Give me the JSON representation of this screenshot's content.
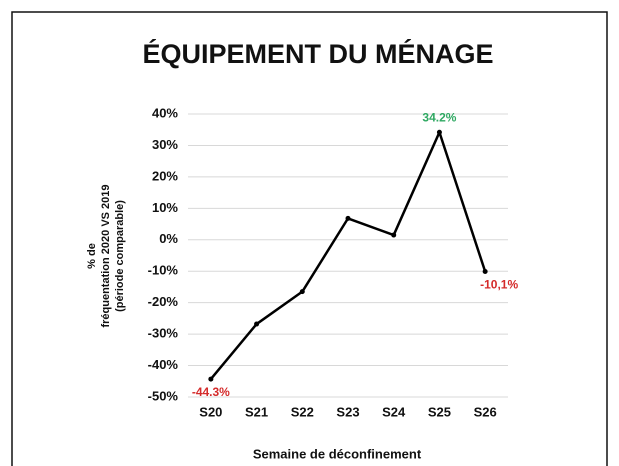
{
  "chart_data": {
    "type": "line",
    "title": "ÉQUIPEMENT DU MÉNAGE",
    "ylabel": [
      "% de",
      "fréquentation 2020 VS 2019",
      "(période comparable)"
    ],
    "xlabel": "Semaine de déconfinement",
    "categories": [
      "S20",
      "S21",
      "S22",
      "S23",
      "S24",
      "S25",
      "S26"
    ],
    "values": [
      -44.3,
      -26.8,
      -16.5,
      6.8,
      1.5,
      34.2,
      -10.1
    ],
    "value_labels": [
      "-44.3%",
      null,
      null,
      null,
      null,
      "34.2%",
      "-10,1%"
    ],
    "value_label_colors": [
      "#d42a2a",
      null,
      null,
      null,
      null,
      "#2fa862",
      "#d42a2a"
    ],
    "color": "#000000",
    "ylim": [
      -50,
      40
    ],
    "yticks": [
      {
        "value": -50,
        "label": "-50%"
      },
      {
        "value": -40,
        "label": "-40%"
      },
      {
        "value": -30,
        "label": "-30%"
      },
      {
        "value": -20,
        "label": "-20%"
      },
      {
        "value": -10,
        "label": "-10%"
      },
      {
        "value": 0,
        "label": "0%"
      },
      {
        "value": 10,
        "label": "10%"
      },
      {
        "value": 20,
        "label": "20%"
      },
      {
        "value": 30,
        "label": "30%"
      },
      {
        "value": 40,
        "label": "40%"
      }
    ],
    "grid": true
  }
}
